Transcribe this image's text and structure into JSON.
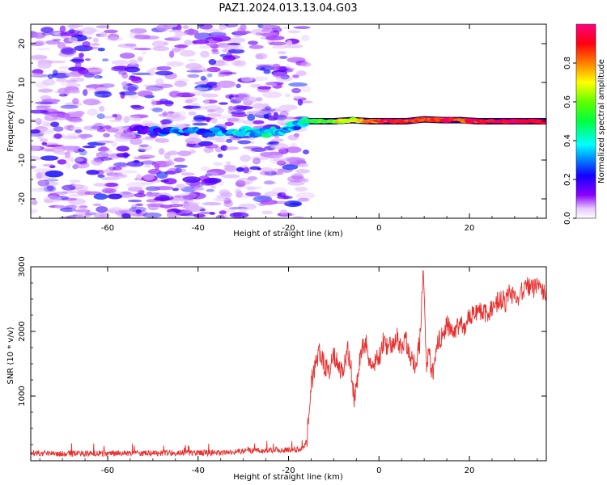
{
  "title": "PAZ1.2024.013.13.04.G03",
  "chart_data": [
    {
      "type": "heatmap",
      "xlabel": "Height of straight line (km)",
      "ylabel": "Frequency (Hz)",
      "xlim": [
        -77,
        37
      ],
      "ylim": [
        -25,
        25
      ],
      "xticks": [
        -60,
        -40,
        -20,
        0,
        20
      ],
      "yticks": [
        -20,
        -10,
        0,
        10,
        20
      ],
      "xtick_labels": [
        "-60",
        "-40",
        "-20",
        "0",
        "20"
      ],
      "ytick_labels": [
        "-20",
        "-10",
        "0",
        "10",
        "20"
      ],
      "colorbar": {
        "label": "Normalized spectral amplitude",
        "range": [
          0,
          1
        ],
        "ticks": [
          0,
          0.2,
          0.4,
          0.6,
          0.8
        ],
        "tick_labels": [
          "0.0",
          "0.2",
          "0.4",
          "0.6",
          "0.8"
        ],
        "colormap": "gist_rainbow_r"
      },
      "noise_region": {
        "x": [
          -77,
          -16
        ],
        "y": [
          -25,
          25
        ],
        "amplitude": [
          0.05,
          0.25
        ]
      },
      "signal_ridge": [
        {
          "x": -55,
          "y": -2,
          "value": 0.18
        },
        {
          "x": -48,
          "y": -2.5,
          "value": 0.22
        },
        {
          "x": -43,
          "y": -2.5,
          "value": 0.28
        },
        {
          "x": -38,
          "y": -3,
          "value": 0.25
        },
        {
          "x": -30,
          "y": -2.5,
          "value": 0.35
        },
        {
          "x": -26,
          "y": -3,
          "value": 0.38
        },
        {
          "x": -22,
          "y": -2.5,
          "value": 0.4
        },
        {
          "x": -18,
          "y": -1,
          "value": 0.3
        },
        {
          "x": -16,
          "y": 0,
          "value": 0.45
        },
        {
          "x": -13,
          "y": 0,
          "value": 0.55
        },
        {
          "x": -10,
          "y": 0,
          "value": 0.62
        },
        {
          "x": -6,
          "y": 0.3,
          "value": 0.7
        },
        {
          "x": -2,
          "y": 0,
          "value": 0.82
        },
        {
          "x": 2,
          "y": 0,
          "value": 0.9
        },
        {
          "x": 6,
          "y": 0,
          "value": 0.92
        },
        {
          "x": 10,
          "y": 0.5,
          "value": 0.85
        },
        {
          "x": 14,
          "y": 0.3,
          "value": 0.9
        },
        {
          "x": 18,
          "y": 0.3,
          "value": 0.88
        },
        {
          "x": 22,
          "y": 0,
          "value": 0.9
        },
        {
          "x": 26,
          "y": 0,
          "value": 0.95
        },
        {
          "x": 30,
          "y": 0,
          "value": 0.96
        },
        {
          "x": 34,
          "y": 0,
          "value": 0.97
        },
        {
          "x": 37,
          "y": 0,
          "value": 0.97
        }
      ]
    },
    {
      "type": "line",
      "xlabel": "Height of straight line (km)",
      "ylabel": "SNR (10 * v/v)",
      "xlim": [
        -77,
        37
      ],
      "ylim": [
        0,
        3000
      ],
      "xticks": [
        -60,
        -40,
        -20,
        0,
        20
      ],
      "yticks": [
        1000,
        2000,
        3000
      ],
      "xtick_labels": [
        "-60",
        "-40",
        "-20",
        "0",
        "20"
      ],
      "ytick_labels": [
        "1000",
        "2000",
        "3000"
      ],
      "grid": false,
      "series": [
        {
          "color": "#e8302e",
          "x": [
            -77,
            -70,
            -60,
            -50,
            -40,
            -35,
            -30,
            -25,
            -20,
            -17,
            -16,
            -15,
            -14,
            -13,
            -12,
            -11,
            -10,
            -9,
            -8,
            -7,
            -6,
            -5.5,
            -5,
            -4,
            -3,
            -2,
            -1,
            0,
            1,
            2,
            3,
            4,
            5,
            6,
            7,
            8,
            9,
            9.8,
            10.5,
            11,
            12,
            13,
            14,
            15,
            16,
            17,
            18,
            19,
            20,
            21,
            22,
            23,
            24,
            25,
            26,
            27,
            28,
            29,
            30,
            31,
            32,
            33,
            34,
            35,
            36,
            37
          ],
          "y": [
            120,
            110,
            115,
            118,
            120,
            125,
            150,
            160,
            170,
            180,
            300,
            1200,
            1500,
            1700,
            1450,
            1400,
            1650,
            1500,
            1300,
            1750,
            1350,
            900,
            1150,
            1700,
            1850,
            1550,
            1500,
            1600,
            1850,
            1750,
            1800,
            1900,
            1750,
            1850,
            1550,
            1500,
            1800,
            2900,
            1400,
            1650,
            1300,
            1850,
            1950,
            2100,
            2000,
            2050,
            2150,
            2000,
            2250,
            2300,
            2250,
            2350,
            2200,
            2400,
            2450,
            2500,
            2450,
            2600,
            2550,
            2550,
            2650,
            2700,
            2650,
            2700,
            2600,
            2550
          ]
        }
      ]
    }
  ]
}
